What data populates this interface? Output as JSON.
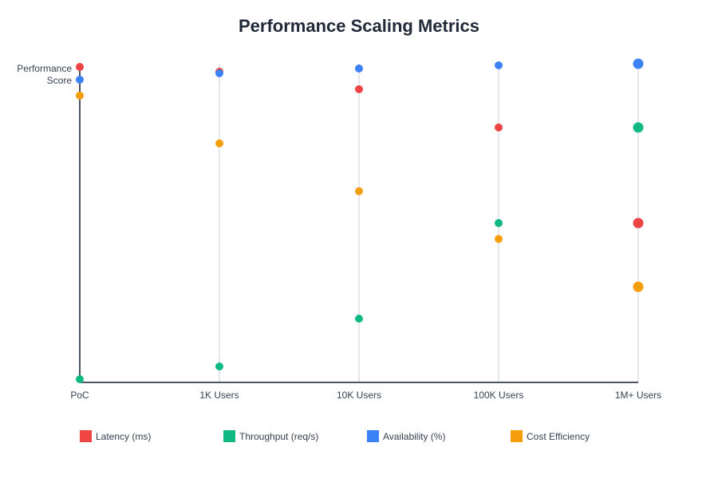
{
  "chart_data": {
    "type": "scatter",
    "title": "Performance Scaling Metrics",
    "ylabel": [
      "Performance",
      "Score"
    ],
    "xlabel": "",
    "categories": [
      "PoC",
      "1K Users",
      "10K Users",
      "100K Users",
      "1M+ Users"
    ],
    "ylim": [
      0,
      100
    ],
    "grid": "vertical",
    "legend_position": "bottom",
    "series": [
      {
        "name": "Latency (ms)",
        "color": "#ef4444",
        "values": [
          99,
          97.5,
          92,
          80,
          50
        ]
      },
      {
        "name": "Throughput (req/s)",
        "color": "#10b981",
        "values": [
          1,
          5,
          20,
          50,
          80
        ]
      },
      {
        "name": "Availability (%)",
        "color": "#3b82f6",
        "values": [
          95,
          97,
          98.5,
          99.5,
          100
        ]
      },
      {
        "name": "Cost Efficiency",
        "color": "#f59e0b",
        "values": [
          90,
          75,
          60,
          45,
          30
        ]
      }
    ]
  }
}
